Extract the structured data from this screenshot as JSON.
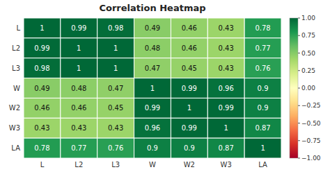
{
  "chart_data": {
    "type": "heatmap",
    "title": "Correlation Heatmap",
    "categories": [
      "L",
      "L2",
      "L3",
      "W",
      "W2",
      "W3",
      "LA"
    ],
    "matrix": [
      [
        1.0,
        0.99,
        0.98,
        0.49,
        0.46,
        0.43,
        0.78
      ],
      [
        0.99,
        1.0,
        1.0,
        0.48,
        0.46,
        0.43,
        0.77
      ],
      [
        0.98,
        1.0,
        1.0,
        0.47,
        0.45,
        0.43,
        0.76
      ],
      [
        0.49,
        0.48,
        0.47,
        1.0,
        0.99,
        0.96,
        0.9
      ],
      [
        0.46,
        0.46,
        0.45,
        0.99,
        1.0,
        0.99,
        0.9
      ],
      [
        0.43,
        0.43,
        0.43,
        0.96,
        0.99,
        1.0,
        0.87
      ],
      [
        0.78,
        0.77,
        0.76,
        0.9,
        0.9,
        0.87,
        1.0
      ]
    ],
    "color_range": [
      -1.0,
      1.0
    ],
    "color_ticks": [
      {
        "value": 1.0,
        "label": "1.00"
      },
      0.75,
      {
        "value": 0.5,
        "label": "0.50"
      },
      0.25,
      {
        "value": 0.0,
        "label": "0.00"
      },
      {
        "value": -0.25,
        "label": "−0.25"
      },
      {
        "value": -0.5,
        "label": "−0.50"
      },
      {
        "value": -0.75,
        "label": "−0.75"
      },
      {
        "value": -1.0,
        "label": "−1.00"
      }
    ],
    "data_labels": true
  }
}
